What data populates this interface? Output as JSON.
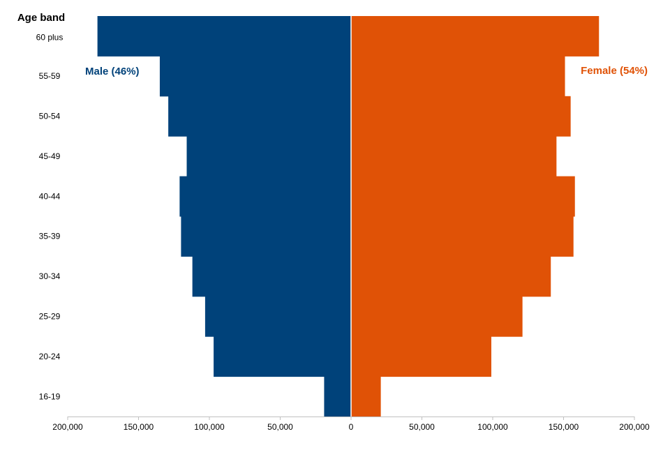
{
  "chart_data": {
    "type": "bar",
    "orientation": "horizontal",
    "layout": "population-pyramid",
    "y_axis_title": "Age band",
    "categories": [
      "60 plus",
      "55-59",
      "50-54",
      "45-49",
      "40-44",
      "35-39",
      "30-34",
      "25-29",
      "20-24",
      "16-19"
    ],
    "series": [
      {
        "name": "Male (46%)",
        "side": "left",
        "color": "#00427a",
        "values": [
          179000,
          135000,
          129000,
          116000,
          121000,
          120000,
          112000,
          103000,
          97000,
          19000
        ]
      },
      {
        "name": "Female (54%)",
        "side": "right",
        "color": "#e05206",
        "values": [
          175000,
          151000,
          155000,
          145000,
          158000,
          157000,
          141000,
          121000,
          99000,
          21000
        ]
      }
    ],
    "xlim": [
      -200000,
      200000
    ],
    "x_ticks": [
      -200000,
      -150000,
      -100000,
      -50000,
      0,
      50000,
      100000,
      150000,
      200000
    ],
    "x_tick_labels": [
      "200,000",
      "150,000",
      "100,000",
      "50,000",
      "0",
      "50,000",
      "100,000",
      "150,000",
      "200,000"
    ],
    "grid": false,
    "legend": "inline labels"
  }
}
